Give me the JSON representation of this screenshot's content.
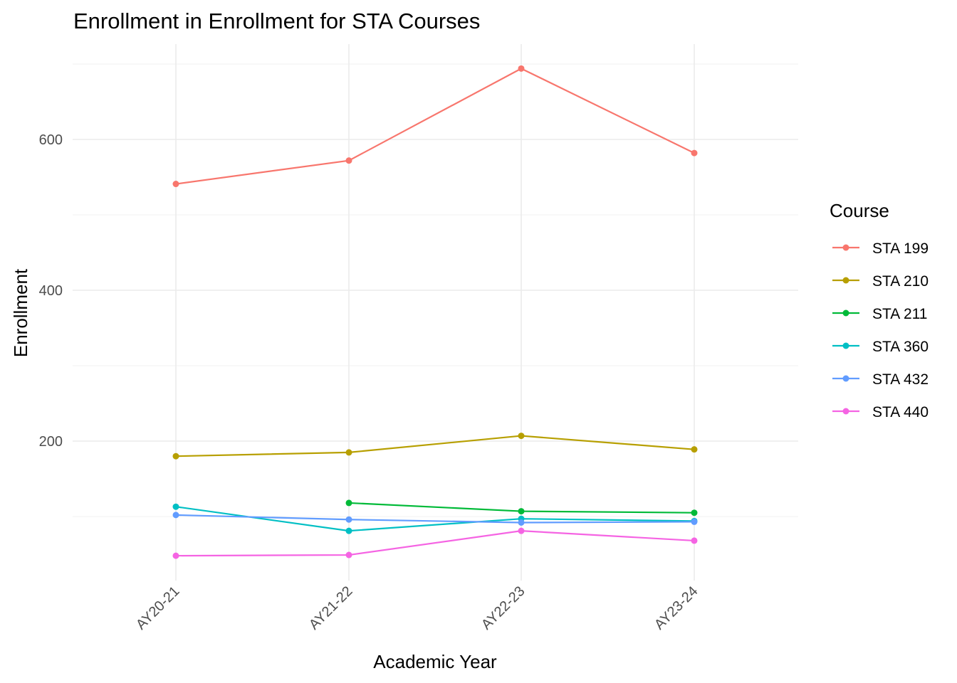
{
  "chart_data": {
    "type": "line",
    "title": "Enrollment in Enrollment for STA Courses",
    "xlabel": "Academic Year",
    "ylabel": "Enrollment",
    "categories": [
      "AY20-21",
      "AY21-22",
      "AY22-23",
      "AY23-24"
    ],
    "ylim": [
      30,
      710
    ],
    "y_ticks": [
      200,
      400,
      600
    ],
    "y_minor_ticks": [
      100,
      300,
      500,
      700
    ],
    "grid": true,
    "legend_title": "Course",
    "legend_position": "right",
    "series": [
      {
        "name": "STA 199",
        "color": "#F8766D",
        "values": [
          541,
          572,
          694,
          582
        ]
      },
      {
        "name": "STA 210",
        "color": "#B79F00",
        "values": [
          180,
          185,
          207,
          189
        ]
      },
      {
        "name": "STA 211",
        "color": "#00BA38",
        "values": [
          null,
          118,
          107,
          105
        ]
      },
      {
        "name": "STA 360",
        "color": "#00BFC4",
        "values": [
          113,
          81,
          97,
          94
        ]
      },
      {
        "name": "STA 432",
        "color": "#619CFF",
        "values": [
          102,
          96,
          92,
          93
        ]
      },
      {
        "name": "STA 440",
        "color": "#F564E3",
        "values": [
          48,
          49,
          81,
          68
        ]
      }
    ]
  }
}
